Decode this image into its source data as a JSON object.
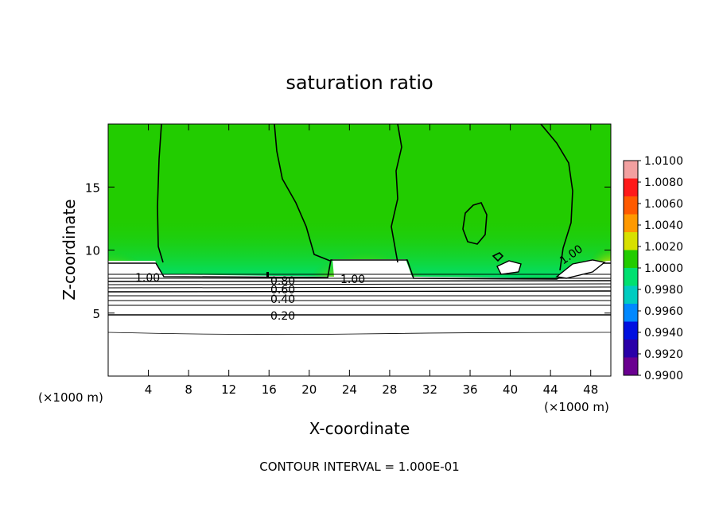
{
  "chart_data": {
    "type": "heatmap",
    "title": "saturation ratio",
    "xlabel": "X-coordinate",
    "ylabel": "Z-coordinate",
    "x_unit_left": "(×1000 m)",
    "x_unit_right": "(×1000 m)",
    "xlim": [
      0,
      50
    ],
    "ylim": [
      0,
      20
    ],
    "x_ticks": [
      4,
      8,
      12,
      16,
      20,
      24,
      28,
      32,
      36,
      40,
      44,
      48
    ],
    "y_ticks": [
      5,
      10,
      15
    ],
    "colorbar": {
      "ticks": [
        "1.0100",
        "1.0080",
        "1.0060",
        "1.0040",
        "1.0020",
        "1.0000",
        "0.9980",
        "0.9960",
        "0.9940",
        "0.9920",
        "0.9900"
      ],
      "colors": [
        "#f2a0a0",
        "#ff1a1a",
        "#ff5a00",
        "#ff9900",
        "#d8e000",
        "#22cc00",
        "#00e070",
        "#00ccc0",
        "#0088ff",
        "#0010e0",
        "#2a00a8",
        "#6a0090"
      ]
    },
    "contour_labels": [
      "1.00",
      "1.00",
      "1.00",
      "0.80",
      "0.60",
      "0.40",
      "0.20"
    ],
    "contour_interval_text": "CONTOUR INTERVAL = 1.000E-01",
    "grid": false
  }
}
